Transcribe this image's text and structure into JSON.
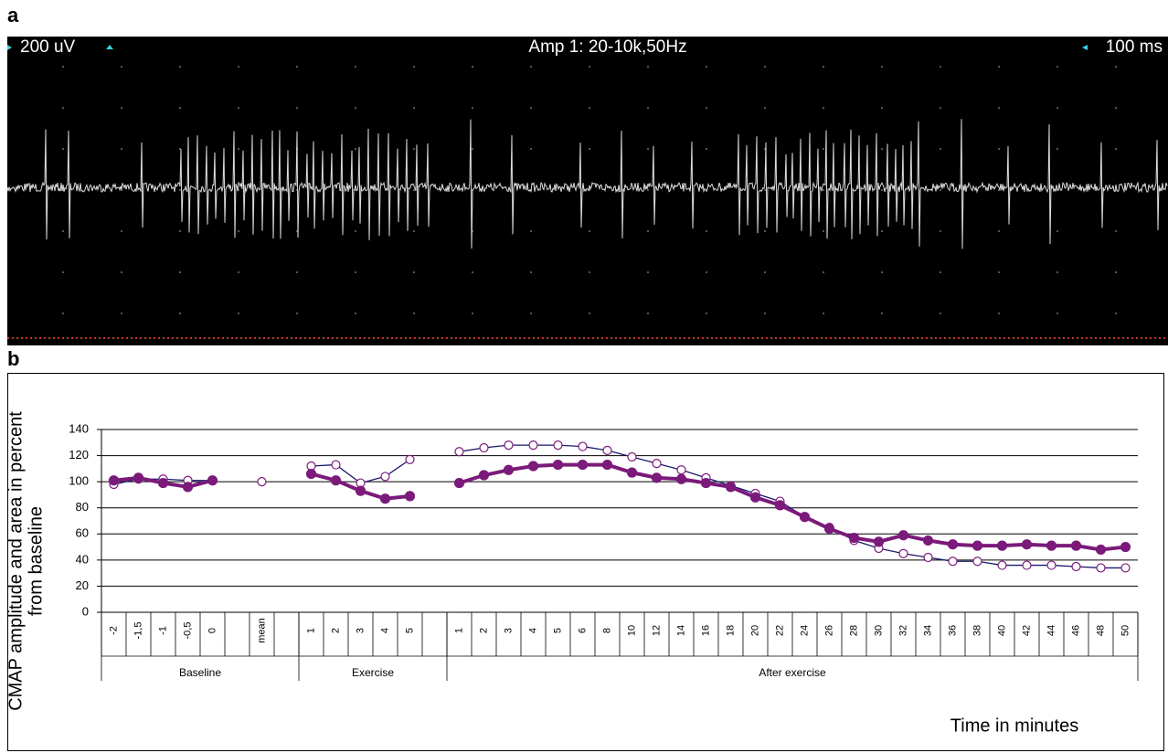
{
  "panel_a": {
    "label": "a",
    "sensitivity": "200 uV",
    "amplifier": "Amp 1: 20-10k,50Hz",
    "sweep": "100 ms"
  },
  "panel_b_label": "b",
  "chart_data": {
    "type": "line",
    "ylabel": [
      "CMAP amplitude and area in percent",
      "from baseline"
    ],
    "xlabel": "Time in minutes",
    "categories": [
      "-2",
      "-1,5",
      "-1",
      "-0,5",
      "0",
      null,
      "mean",
      null,
      "1",
      "2",
      "3",
      "4",
      "5",
      null,
      "1",
      "2",
      "3",
      "4",
      "5",
      "6",
      "8",
      "10",
      "12",
      "14",
      "16",
      "18",
      "20",
      "22",
      "24",
      "26",
      "28",
      "30",
      "32",
      "34",
      "36",
      "38",
      "40",
      "42",
      "44",
      "46",
      "48",
      "50"
    ],
    "groups": [
      {
        "label": "Baseline",
        "span": 8
      },
      {
        "label": "Exercise",
        "span": 6
      },
      {
        "label": "After exercise",
        "span": 28
      }
    ],
    "ylim": [
      0,
      140
    ],
    "yticks": [
      0,
      20,
      40,
      60,
      80,
      100,
      120,
      140
    ],
    "grid": true,
    "series": [
      {
        "color": "#7b1a7b",
        "marker": "filled",
        "values": [
          101,
          103,
          99,
          96,
          101,
          null,
          null,
          null,
          106,
          101,
          93,
          87,
          89,
          null,
          99,
          105,
          109,
          112,
          113,
          113,
          113,
          107,
          103,
          102,
          99,
          96,
          88,
          82,
          73,
          64,
          57,
          54,
          59,
          55,
          52,
          51,
          51,
          52,
          51,
          51,
          48,
          50
        ]
      },
      {
        "color": "#1a1a6e",
        "marker": "open",
        "values": [
          98,
          102,
          102,
          101,
          101,
          null,
          100,
          null,
          112,
          113,
          99,
          104,
          117,
          null,
          123,
          126,
          128,
          128,
          128,
          127,
          124,
          119,
          114,
          109,
          103,
          97,
          91,
          85,
          73,
          65,
          55,
          49,
          45,
          42,
          39,
          39,
          36,
          36,
          36,
          35,
          34,
          34
        ]
      }
    ]
  }
}
